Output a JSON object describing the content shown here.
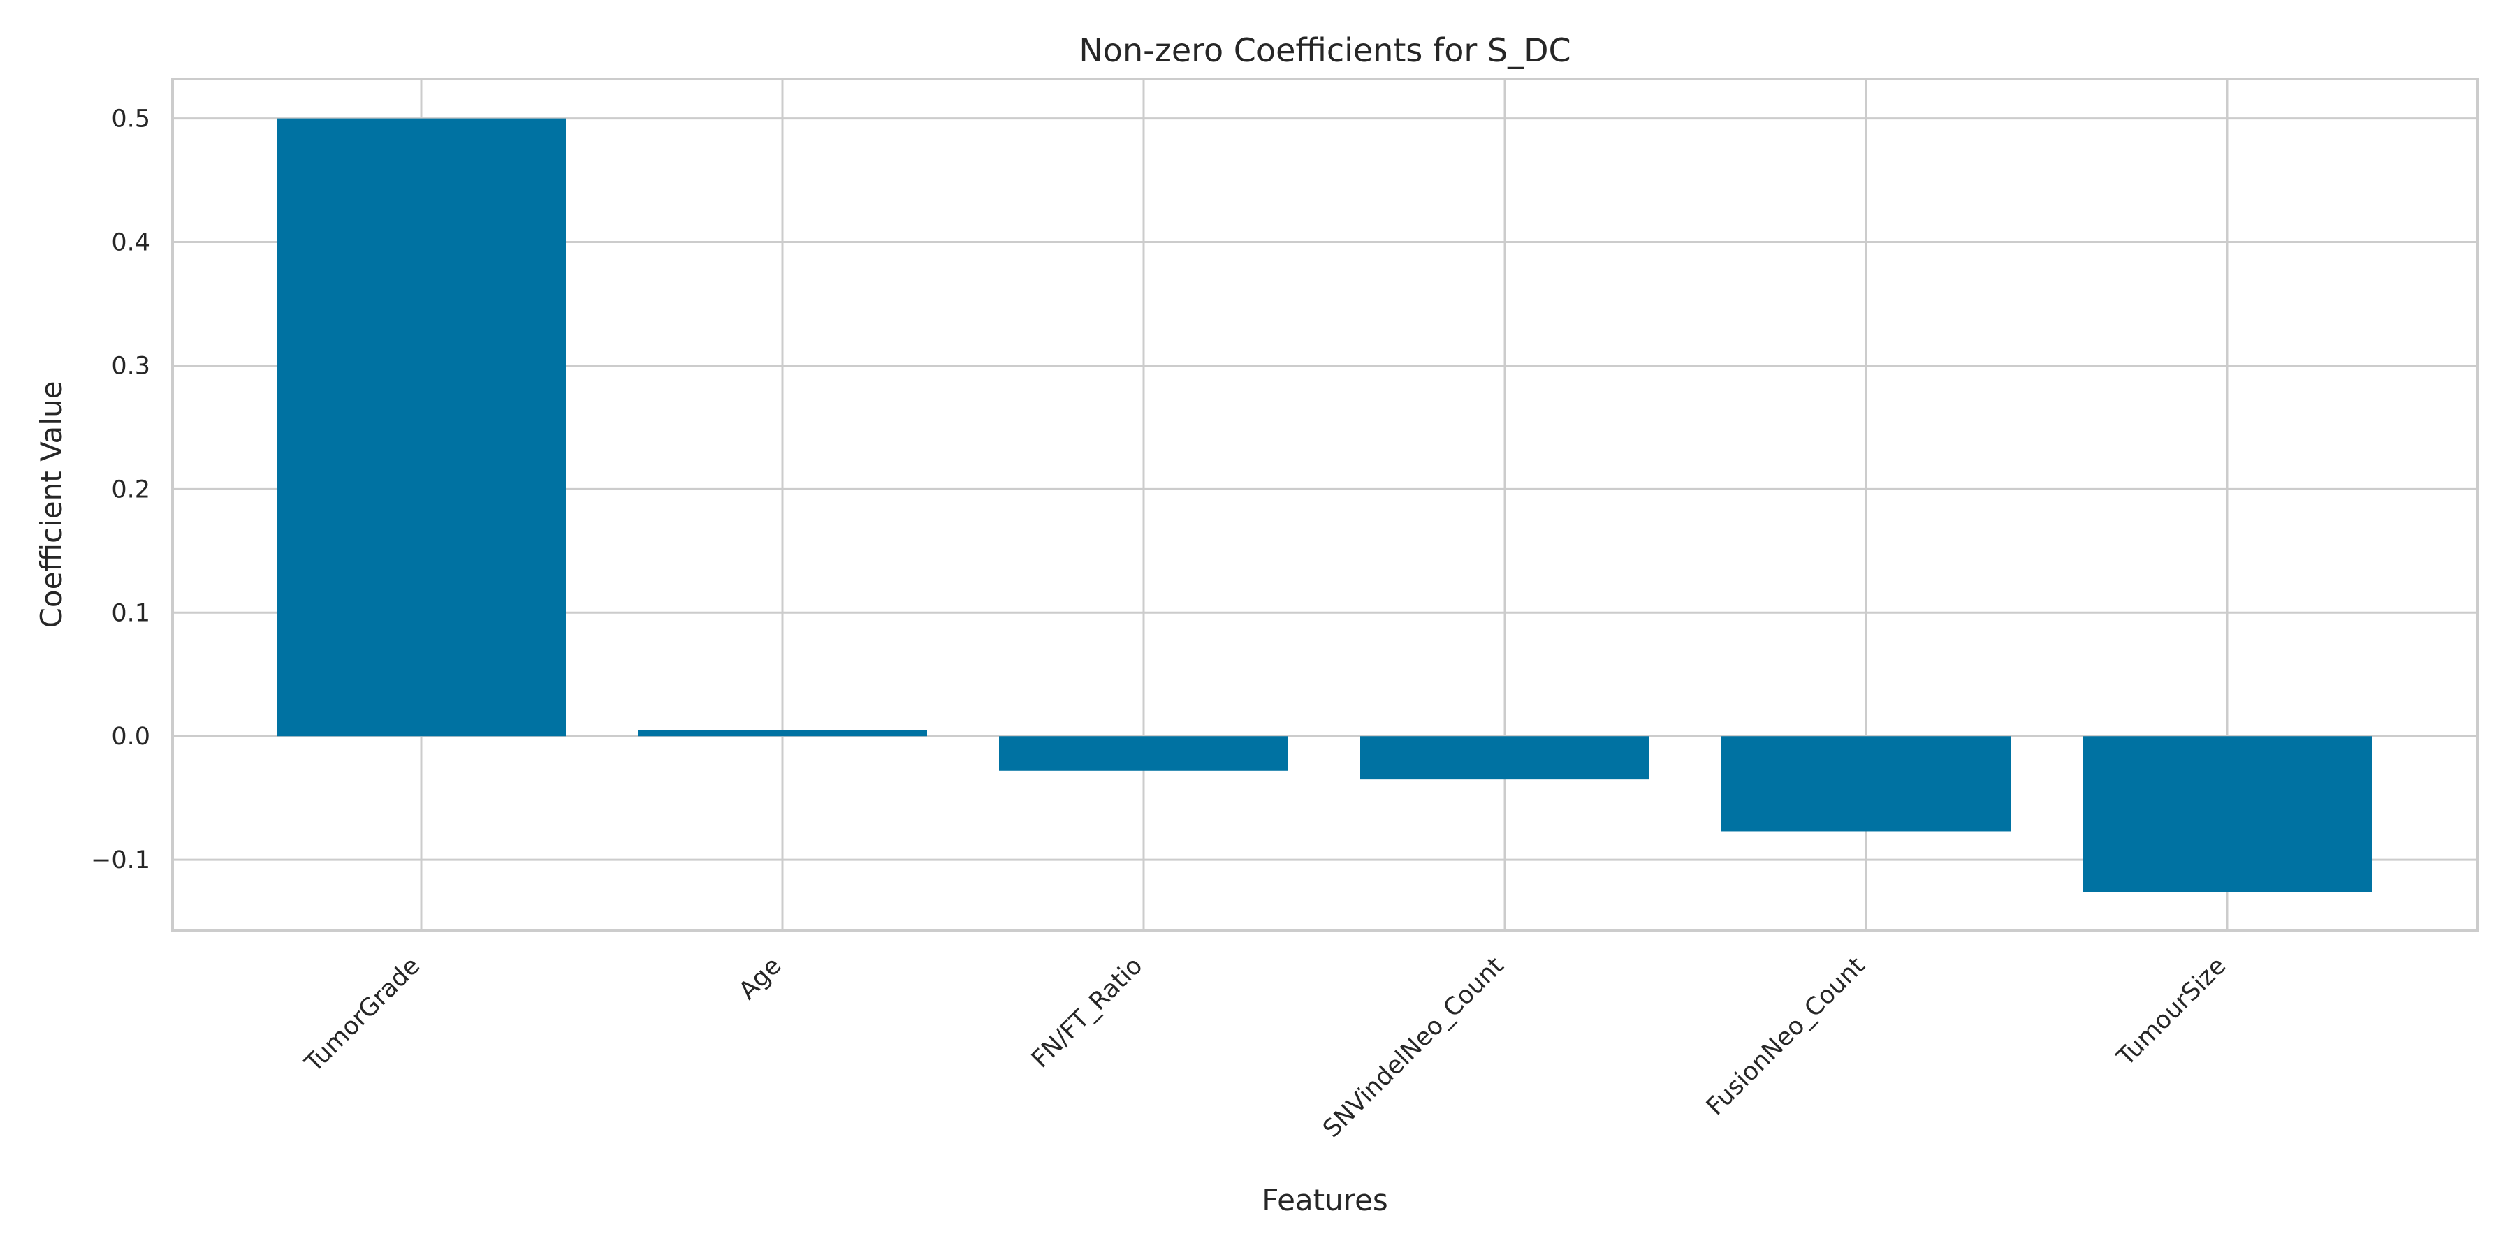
{
  "chart_data": {
    "type": "bar",
    "title": "Non-zero Coefficients for S_DC",
    "xlabel": "Features",
    "ylabel": "Coefficient Value",
    "categories": [
      "TumorGrade",
      "Age",
      "FN/FT_Ratio",
      "SNVindelNeo_Count",
      "FusionNeo_Count",
      "TumourSize"
    ],
    "values": [
      0.5,
      0.005,
      -0.028,
      -0.035,
      -0.077,
      -0.126
    ],
    "ylim": [
      -0.157,
      0.532
    ],
    "yticks": [
      -0.1,
      0.0,
      0.1,
      0.2,
      0.3,
      0.4,
      0.5
    ],
    "ytick_labels": [
      "−0.1",
      "0.0",
      "0.1",
      "0.2",
      "0.3",
      "0.4",
      "0.5"
    ],
    "grid": true,
    "legend": "none",
    "colors": {
      "bar": "#0072a2",
      "grid": "#cccccc",
      "axis": "#cccccc",
      "text": "#262626"
    }
  }
}
